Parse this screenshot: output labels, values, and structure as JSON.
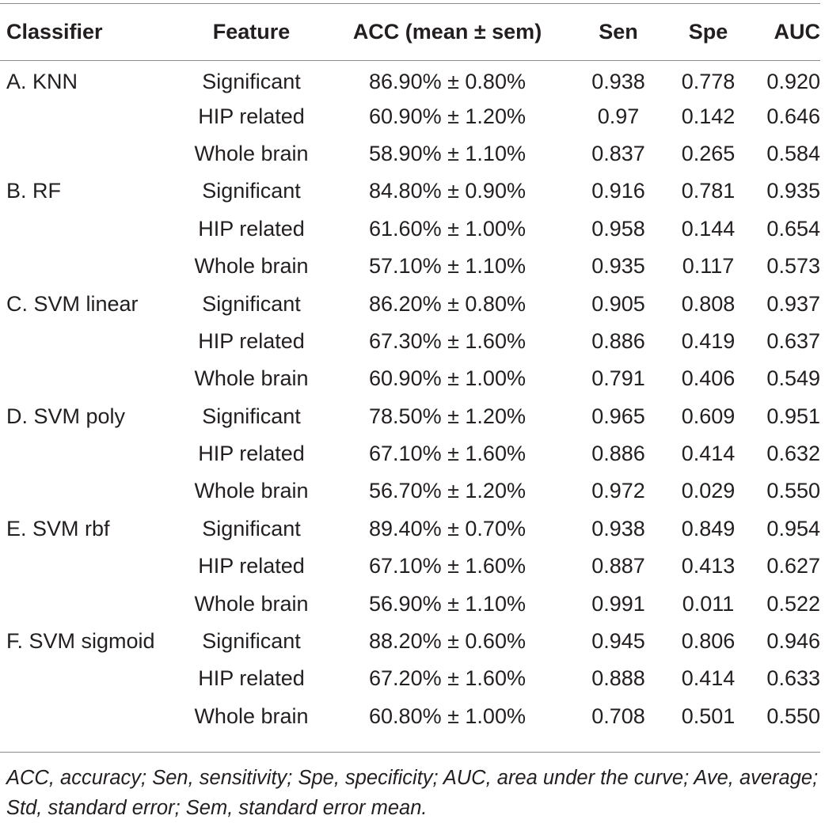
{
  "table": {
    "headers": [
      "Classifier",
      "Feature",
      "ACC (mean ± sem)",
      "Sen",
      "Spe",
      "AUC"
    ],
    "rows": [
      {
        "classifier": "A. KNN",
        "feature": "Significant",
        "acc": "86.90% ± 0.80%",
        "sen": "0.938",
        "spe": "0.778",
        "auc": "0.920"
      },
      {
        "classifier": "",
        "feature": "HIP related",
        "acc": "60.90% ± 1.20%",
        "sen": "0.97",
        "spe": "0.142",
        "auc": "0.646"
      },
      {
        "classifier": "",
        "feature": "Whole brain",
        "acc": "58.90% ± 1.10%",
        "sen": "0.837",
        "spe": "0.265",
        "auc": "0.584"
      },
      {
        "classifier": "B. RF",
        "feature": "Significant",
        "acc": "84.80% ± 0.90%",
        "sen": "0.916",
        "spe": "0.781",
        "auc": "0.935"
      },
      {
        "classifier": "",
        "feature": "HIP related",
        "acc": "61.60% ± 1.00%",
        "sen": "0.958",
        "spe": "0.144",
        "auc": "0.654"
      },
      {
        "classifier": "",
        "feature": "Whole brain",
        "acc": "57.10% ± 1.10%",
        "sen": "0.935",
        "spe": "0.117",
        "auc": "0.573"
      },
      {
        "classifier": "C. SVM linear",
        "feature": "Significant",
        "acc": "86.20% ± 0.80%",
        "sen": "0.905",
        "spe": "0.808",
        "auc": "0.937"
      },
      {
        "classifier": "",
        "feature": "HIP related",
        "acc": "67.30% ± 1.60%",
        "sen": "0.886",
        "spe": "0.419",
        "auc": "0.637"
      },
      {
        "classifier": "",
        "feature": "Whole brain",
        "acc": "60.90% ± 1.00%",
        "sen": "0.791",
        "spe": "0.406",
        "auc": "0.549"
      },
      {
        "classifier": "D. SVM poly",
        "feature": "Significant",
        "acc": "78.50% ± 1.20%",
        "sen": "0.965",
        "spe": "0.609",
        "auc": "0.951"
      },
      {
        "classifier": "",
        "feature": "HIP related",
        "acc": "67.10% ± 1.60%",
        "sen": "0.886",
        "spe": "0.414",
        "auc": "0.632"
      },
      {
        "classifier": "",
        "feature": "Whole brain",
        "acc": "56.70% ± 1.20%",
        "sen": "0.972",
        "spe": "0.029",
        "auc": "0.550"
      },
      {
        "classifier": "E. SVM rbf",
        "feature": "Significant",
        "acc": "89.40% ± 0.70%",
        "sen": "0.938",
        "spe": "0.849",
        "auc": "0.954"
      },
      {
        "classifier": "",
        "feature": "HIP related",
        "acc": "67.10% ± 1.60%",
        "sen": "0.887",
        "spe": "0.413",
        "auc": "0.627"
      },
      {
        "classifier": "",
        "feature": "Whole brain",
        "acc": "56.90% ± 1.10%",
        "sen": "0.991",
        "spe": "0.011",
        "auc": "0.522"
      },
      {
        "classifier": "F. SVM sigmoid",
        "feature": "Significant",
        "acc": "88.20% ± 0.60%",
        "sen": "0.945",
        "spe": "0.806",
        "auc": "0.946"
      },
      {
        "classifier": "",
        "feature": "HIP related",
        "acc": "67.20% ± 1.60%",
        "sen": "0.888",
        "spe": "0.414",
        "auc": "0.633"
      },
      {
        "classifier": "",
        "feature": "Whole brain",
        "acc": "60.80% ± 1.00%",
        "sen": "0.708",
        "spe": "0.501",
        "auc": "0.550"
      }
    ]
  },
  "footnote": "ACC, accuracy; Sen, sensitivity; Spe, specificity; AUC, area under the curve; Ave, average; Std, standard error; Sem, standard error mean."
}
